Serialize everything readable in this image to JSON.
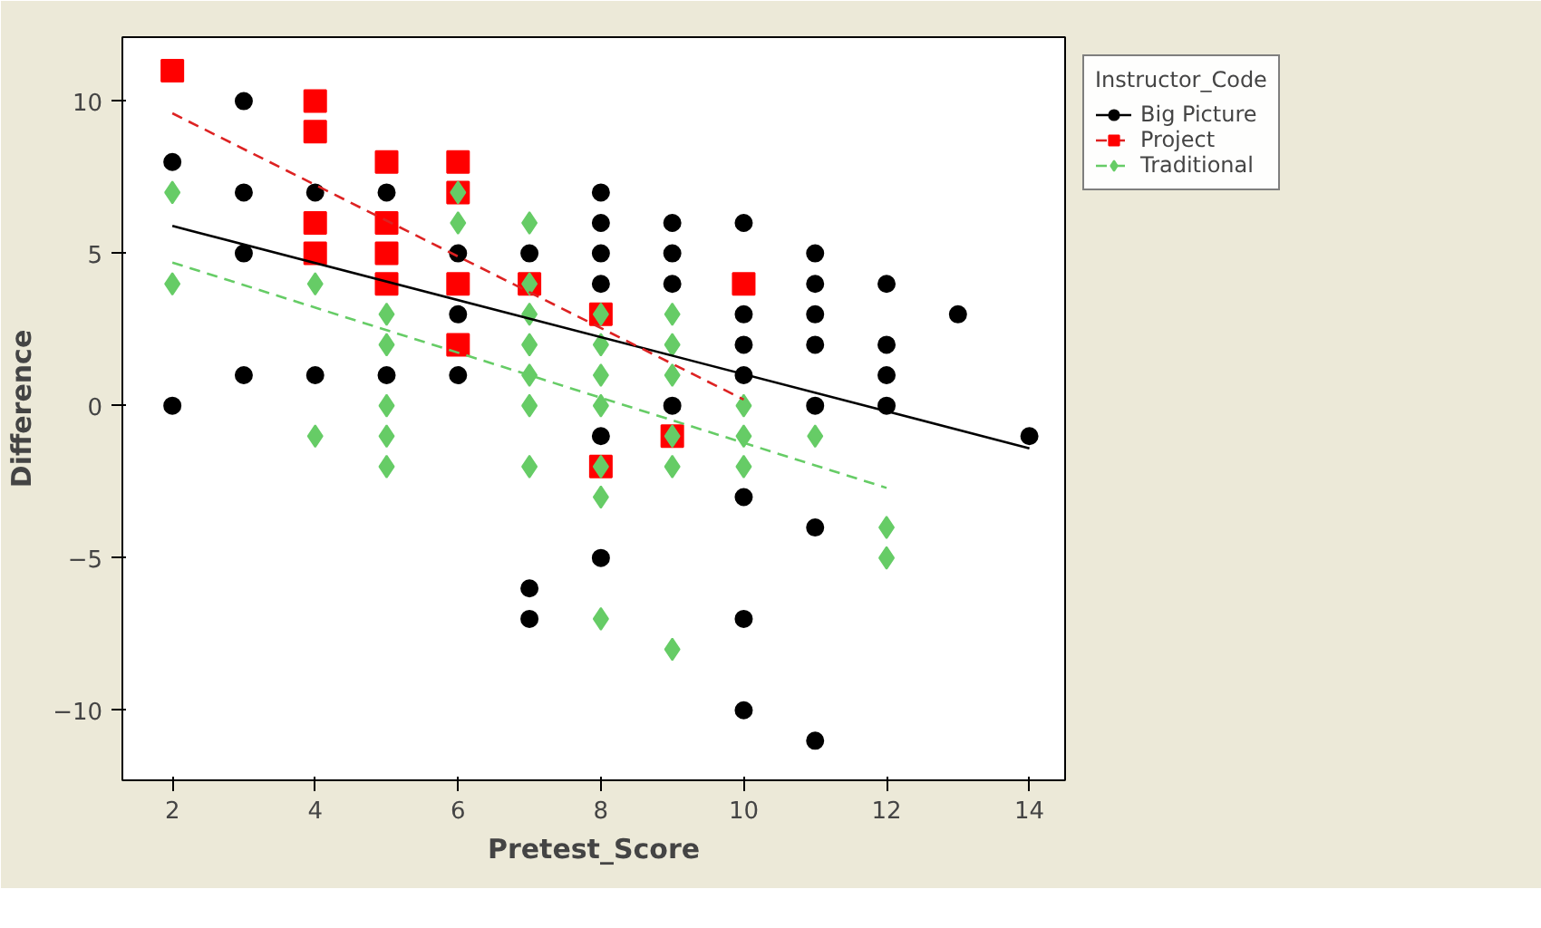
{
  "chart_data": {
    "type": "scatter",
    "xlabel": "Pretest_Score",
    "ylabel": "Difference",
    "legend_title": "Instructor_Code",
    "legend": "right",
    "xlim": [
      1.3,
      14.5
    ],
    "ylim": [
      -12.3,
      12.1
    ],
    "xticks": [
      2,
      4,
      6,
      8,
      10,
      12,
      14
    ],
    "yticks": [
      -10,
      -5,
      0,
      5,
      10
    ],
    "grid": false,
    "series": [
      {
        "name": "Big Picture",
        "color": "#000000",
        "marker": "circle",
        "x": [
          2,
          2,
          3,
          3,
          3,
          3,
          4,
          4,
          5,
          5,
          6,
          6,
          6,
          7,
          7,
          7,
          8,
          8,
          8,
          8,
          8,
          8,
          9,
          9,
          9,
          9,
          10,
          10,
          10,
          10,
          10,
          10,
          10,
          11,
          11,
          11,
          11,
          11,
          11,
          11,
          12,
          12,
          12,
          12,
          13,
          14
        ],
        "values": [
          8,
          0,
          10,
          7,
          5,
          1,
          7,
          1,
          7,
          1,
          5,
          3,
          1,
          5,
          -6,
          -7,
          7,
          6,
          5,
          4,
          -1,
          -5,
          6,
          5,
          4,
          0,
          6,
          3,
          2,
          1,
          -3,
          -7,
          -10,
          5,
          4,
          3,
          2,
          0,
          -4,
          -11,
          4,
          2,
          1,
          0,
          3,
          -1
        ]
      },
      {
        "name": "Project",
        "color": "#ff0000",
        "marker": "square",
        "x": [
          2,
          4,
          4,
          4,
          4,
          5,
          5,
          5,
          5,
          6,
          6,
          6,
          6,
          7,
          8,
          8,
          9,
          10
        ],
        "values": [
          11,
          10,
          9,
          6,
          5,
          8,
          6,
          5,
          4,
          8,
          7,
          4,
          2,
          4,
          3,
          -2,
          -1,
          4
        ]
      },
      {
        "name": "Traditional",
        "color": "#66cc66",
        "marker": "diamond",
        "x": [
          2,
          2,
          4,
          4,
          5,
          5,
          5,
          5,
          5,
          6,
          6,
          7,
          7,
          7,
          7,
          7,
          7,
          7,
          8,
          8,
          8,
          8,
          8,
          8,
          8,
          9,
          9,
          9,
          9,
          9,
          9,
          10,
          10,
          10,
          11,
          12,
          12
        ],
        "values": [
          7,
          4,
          4,
          -1,
          3,
          2,
          0,
          -1,
          -2,
          7,
          6,
          6,
          4,
          3,
          2,
          1,
          0,
          -2,
          3,
          2,
          1,
          0,
          -2,
          -3,
          -7,
          3,
          2,
          1,
          -1,
          -2,
          -8,
          0,
          -1,
          -2,
          -1,
          -4,
          -5
        ]
      },
      {
        "type": "line",
        "color": "#000000",
        "line_style": "solid",
        "x": [
          2,
          14
        ],
        "values": [
          5.9,
          -1.4
        ]
      },
      {
        "type": "line",
        "color": "#dd2222",
        "line_style": "dashed",
        "x": [
          2,
          10
        ],
        "values": [
          9.6,
          0.2
        ]
      },
      {
        "type": "line",
        "color": "#66cc66",
        "line_style": "dashed",
        "x": [
          2,
          12
        ],
        "values": [
          4.7,
          -2.7
        ]
      }
    ]
  }
}
